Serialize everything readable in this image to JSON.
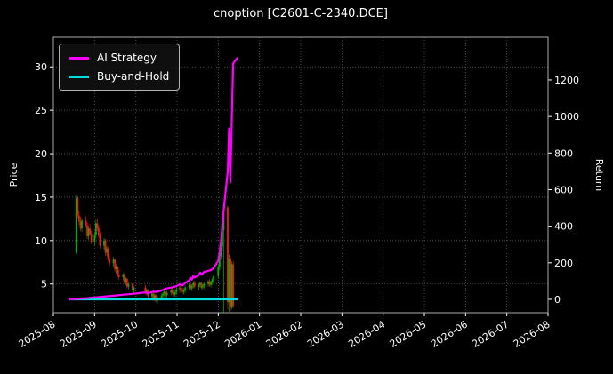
{
  "chart_data": {
    "type": "candlestick+line",
    "title": "cnoption [C2601-C-2340.DCE]",
    "ylabel_left": "Price",
    "ylabel_right": "Return",
    "legend_position": "upper-left",
    "grid": true,
    "x_tick_labels": [
      "2025-08",
      "2025-09",
      "2025-10",
      "2025-11",
      "2025-12",
      "2026-01",
      "2026-02",
      "2026-03",
      "2026-04",
      "2026-05",
      "2026-06",
      "2026-07",
      "2026-08"
    ],
    "price_ticks": [
      5,
      10,
      15,
      20,
      25,
      30
    ],
    "return_ticks": [
      0,
      200,
      400,
      600,
      800,
      1000,
      1200
    ],
    "x_range": [
      "2025-08-01",
      "2026-08-01"
    ],
    "price_range": [
      1.7,
      33.4
    ],
    "return_range": [
      -73,
      1433
    ],
    "colors": {
      "background": "#000000",
      "text": "#ffffff",
      "spine": "#aaaaaa",
      "grid": "#5a5a5a",
      "ai_strategy": "#ff00ff",
      "buy_and_hold": "#00dcdc",
      "candle_up": "#00b300",
      "candle_down": "#f01818"
    },
    "candles": [
      [
        "2025-08-18",
        8.6,
        15.2,
        8.4,
        14.9
      ],
      [
        "2025-08-19",
        14.9,
        15.1,
        12.6,
        12.9
      ],
      [
        "2025-08-20",
        12.9,
        13.4,
        11.8,
        12.2
      ],
      [
        "2025-08-21",
        12.2,
        12.8,
        11.1,
        11.4
      ],
      [
        "2025-08-22",
        11.4,
        12.6,
        11.0,
        12.3
      ],
      [
        "2025-08-25",
        12.3,
        12.8,
        11.5,
        11.8
      ],
      [
        "2025-08-26",
        11.8,
        12.1,
        10.2,
        10.5
      ],
      [
        "2025-08-27",
        10.5,
        11.7,
        10.1,
        11.4
      ],
      [
        "2025-08-28",
        11.4,
        11.9,
        10.6,
        10.8
      ],
      [
        "2025-08-29",
        10.8,
        11.2,
        9.6,
        9.9
      ],
      [
        "2025-09-01",
        9.9,
        10.9,
        9.4,
        10.6
      ],
      [
        "2025-09-02",
        10.6,
        12.4,
        10.3,
        12.0
      ],
      [
        "2025-09-03",
        12.0,
        12.5,
        11.1,
        11.4
      ],
      [
        "2025-09-04",
        11.4,
        11.8,
        10.3,
        10.6
      ],
      [
        "2025-09-05",
        10.6,
        11.0,
        9.1,
        9.4
      ],
      [
        "2025-09-08",
        9.4,
        10.3,
        9.0,
        10.0
      ],
      [
        "2025-09-09",
        10.0,
        10.2,
        8.3,
        8.6
      ],
      [
        "2025-09-10",
        8.6,
        9.4,
        8.2,
        9.1
      ],
      [
        "2025-09-11",
        9.1,
        9.3,
        7.6,
        7.9
      ],
      [
        "2025-09-12",
        7.9,
        8.4,
        7.1,
        7.4
      ],
      [
        "2025-09-15",
        7.4,
        8.1,
        7.0,
        7.8
      ],
      [
        "2025-09-16",
        7.8,
        8.0,
        6.4,
        6.7
      ],
      [
        "2025-09-17",
        6.7,
        7.3,
        6.2,
        7.0
      ],
      [
        "2025-09-18",
        7.0,
        7.1,
        5.8,
        6.1
      ],
      [
        "2025-09-19",
        6.1,
        6.6,
        5.5,
        5.8
      ],
      [
        "2025-09-22",
        5.8,
        6.3,
        5.4,
        6.1
      ],
      [
        "2025-09-23",
        6.1,
        6.2,
        5.0,
        5.2
      ],
      [
        "2025-09-24",
        5.2,
        5.8,
        4.9,
        5.6
      ],
      [
        "2025-09-25",
        5.6,
        5.7,
        4.5,
        4.7
      ],
      [
        "2025-09-26",
        4.7,
        5.2,
        4.4,
        5.0
      ],
      [
        "2025-09-29",
        5.0,
        5.1,
        4.1,
        4.3
      ],
      [
        "2025-09-30",
        4.3,
        4.8,
        4.0,
        4.6
      ],
      [
        "2025-10-08",
        4.6,
        4.9,
        3.8,
        4.0
      ],
      [
        "2025-10-09",
        4.0,
        4.5,
        3.7,
        4.3
      ],
      [
        "2025-10-10",
        4.3,
        4.4,
        3.4,
        3.6
      ],
      [
        "2025-10-13",
        3.6,
        4.1,
        3.3,
        3.9
      ],
      [
        "2025-10-14",
        3.9,
        4.0,
        3.1,
        3.3
      ],
      [
        "2025-10-15",
        3.3,
        3.9,
        3.0,
        3.7
      ],
      [
        "2025-10-16",
        3.7,
        3.8,
        2.9,
        3.1
      ],
      [
        "2025-10-17",
        3.1,
        3.6,
        2.8,
        3.4
      ],
      [
        "2025-10-20",
        3.4,
        3.9,
        3.1,
        3.7
      ],
      [
        "2025-10-21",
        3.7,
        4.1,
        3.4,
        3.9
      ],
      [
        "2025-10-22",
        3.9,
        4.3,
        3.5,
        4.1
      ],
      [
        "2025-10-23",
        4.1,
        4.2,
        3.5,
        3.7
      ],
      [
        "2025-10-24",
        3.7,
        4.2,
        3.4,
        4.0
      ],
      [
        "2025-10-27",
        4.0,
        4.5,
        3.7,
        4.3
      ],
      [
        "2025-10-28",
        4.3,
        4.6,
        3.8,
        4.0
      ],
      [
        "2025-10-29",
        4.0,
        4.4,
        3.6,
        3.8
      ],
      [
        "2025-10-30",
        3.8,
        4.3,
        3.5,
        4.1
      ],
      [
        "2025-10-31",
        4.1,
        4.6,
        3.8,
        4.4
      ],
      [
        "2025-11-03",
        4.4,
        4.8,
        4.0,
        4.6
      ],
      [
        "2025-11-04",
        4.6,
        4.9,
        4.1,
        4.3
      ],
      [
        "2025-11-05",
        4.3,
        4.6,
        3.9,
        4.1
      ],
      [
        "2025-11-06",
        4.1,
        4.5,
        3.8,
        4.3
      ],
      [
        "2025-11-07",
        4.3,
        4.8,
        4.0,
        4.6
      ],
      [
        "2025-11-10",
        4.6,
        5.1,
        4.3,
        4.9
      ],
      [
        "2025-11-11",
        4.9,
        5.2,
        4.3,
        4.5
      ],
      [
        "2025-11-12",
        4.5,
        5.0,
        4.2,
        4.8
      ],
      [
        "2025-11-13",
        4.8,
        5.3,
        4.5,
        5.1
      ],
      [
        "2025-11-14",
        5.1,
        5.4,
        4.5,
        4.7
      ],
      [
        "2025-11-17",
        4.7,
        5.1,
        4.3,
        4.9
      ],
      [
        "2025-11-18",
        4.9,
        5.3,
        4.6,
        5.1
      ],
      [
        "2025-11-19",
        5.1,
        5.2,
        4.4,
        4.6
      ],
      [
        "2025-11-20",
        4.6,
        5.0,
        4.3,
        4.8
      ],
      [
        "2025-11-21",
        4.8,
        5.2,
        4.5,
        5.0
      ],
      [
        "2025-11-24",
        5.0,
        5.5,
        4.7,
        5.3
      ],
      [
        "2025-11-25",
        5.3,
        5.6,
        4.7,
        4.9
      ],
      [
        "2025-11-26",
        4.9,
        5.4,
        4.6,
        5.2
      ],
      [
        "2025-11-27",
        5.2,
        5.7,
        4.9,
        5.5
      ],
      [
        "2025-11-28",
        5.5,
        6.1,
        5.1,
        5.9
      ],
      [
        "2025-12-01",
        5.9,
        7.2,
        5.6,
        7.0
      ],
      [
        "2025-12-02",
        7.0,
        8.5,
        6.6,
        8.2
      ],
      [
        "2025-12-03",
        8.2,
        9.7,
        7.8,
        9.3
      ],
      [
        "2025-12-04",
        9.3,
        11.6,
        8.9,
        11.2
      ],
      [
        "2025-12-05",
        11.2,
        14.3,
        1.7,
        13.8
      ],
      [
        "2025-12-08",
        13.8,
        14.0,
        2.1,
        2.9
      ],
      [
        "2025-12-09",
        2.9,
        8.4,
        1.8,
        7.9
      ],
      [
        "2025-12-10",
        7.9,
        8.2,
        1.9,
        2.3
      ],
      [
        "2025-12-11",
        2.3,
        7.6,
        2.1,
        7.3
      ],
      [
        "2025-12-12",
        7.3,
        7.7,
        2.2,
        2.5
      ]
    ],
    "series": [
      {
        "name": "AI Strategy",
        "axis": "return",
        "color_key": "ai_strategy",
        "dates": [
          "2025-08-13",
          "2025-08-18",
          "2025-08-25",
          "2025-09-01",
          "2025-09-08",
          "2025-09-15",
          "2025-09-22",
          "2025-09-29",
          "2025-10-08",
          "2025-10-10",
          "2025-10-14",
          "2025-10-16",
          "2025-10-20",
          "2025-10-22",
          "2025-10-24",
          "2025-10-28",
          "2025-10-31",
          "2025-11-03",
          "2025-11-05",
          "2025-11-07",
          "2025-11-10",
          "2025-11-11",
          "2025-11-12",
          "2025-11-13",
          "2025-11-14",
          "2025-11-17",
          "2025-11-18",
          "2025-11-19",
          "2025-11-20",
          "2025-11-21",
          "2025-11-24",
          "2025-11-26",
          "2025-11-28",
          "2025-12-01",
          "2025-12-02",
          "2025-12-03",
          "2025-12-04",
          "2025-12-05",
          "2025-12-08",
          "2025-12-09",
          "2025-12-10",
          "2025-12-11",
          "2025-12-12",
          "2025-12-15"
        ],
        "values": [
          0,
          3,
          6,
          10,
          15,
          20,
          25,
          30,
          38,
          34,
          42,
          40,
          48,
          55,
          60,
          66,
          72,
          82,
          76,
          90,
          104,
          118,
          108,
          128,
          120,
          132,
          146,
          136,
          142,
          150,
          156,
          160,
          172,
          210,
          258,
          318,
          398,
          486,
          700,
          935,
          640,
          1000,
          1290,
          1320
        ]
      },
      {
        "name": "Buy-and-Hold",
        "axis": "return",
        "color_key": "buy_and_hold",
        "dates": [
          "2025-08-13",
          "2025-12-15"
        ],
        "values": [
          0,
          0
        ]
      }
    ]
  }
}
